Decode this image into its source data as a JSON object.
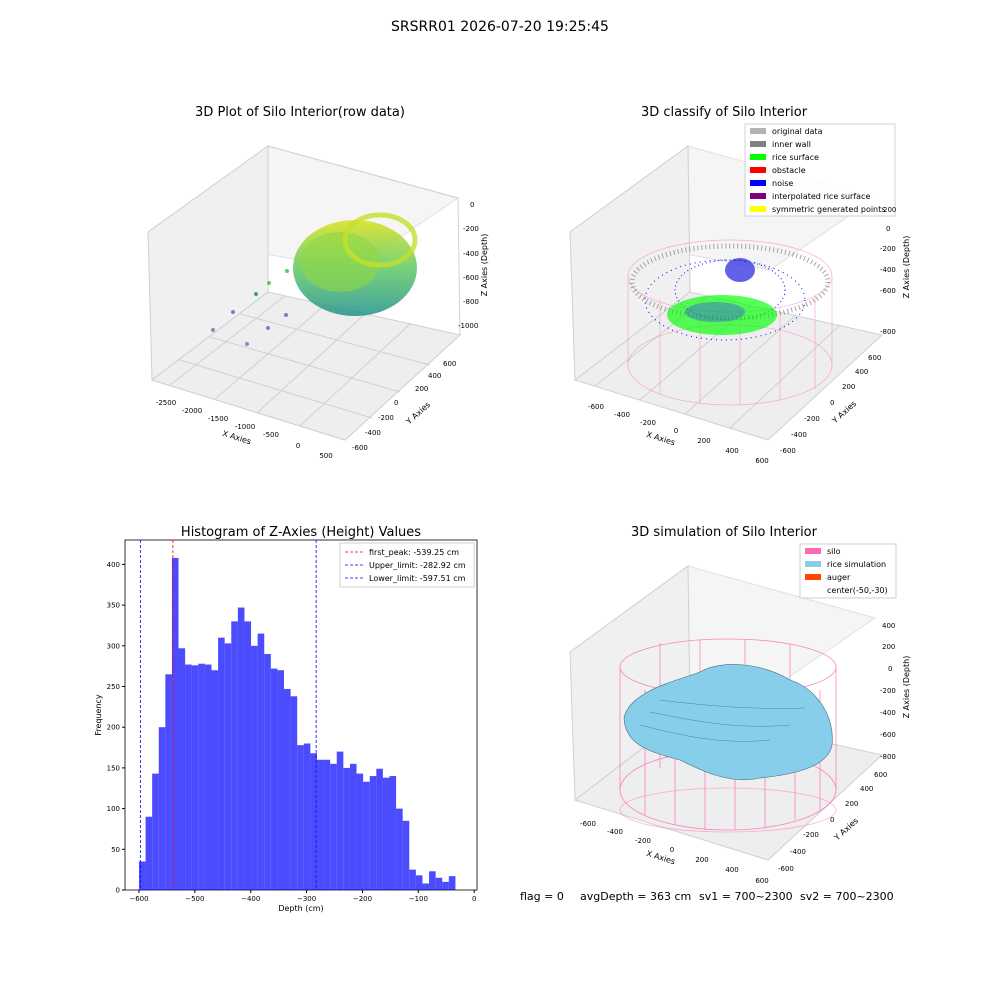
{
  "figure_title": "SRSRR01 2026-07-20 19:25:45",
  "status_line": {
    "flag": "flag = 0",
    "avg_depth": "avgDepth = 363 cm",
    "sv1": "sv1 = 700~2300",
    "sv2": "sv2 = 700~2300"
  },
  "chart_data": [
    {
      "type": "scatter",
      "projection": "3d",
      "title": "3D Plot of Silo Interior(row data)",
      "xlabel": "X Axies",
      "ylabel": "Y Axies",
      "zlabel": "Z Axies (Depth)",
      "x_ticks": [
        "-2500",
        "-2000",
        "-1500",
        "-1000",
        "-500",
        "0",
        "500"
      ],
      "y_ticks": [
        "-600",
        "-400",
        "-200",
        "0",
        "200",
        "400",
        "600"
      ],
      "z_ticks": [
        "0",
        "-200",
        "-400",
        "-600",
        "-800",
        "-1000"
      ],
      "colormap": "viridis"
    },
    {
      "type": "scatter",
      "projection": "3d",
      "title": "3D classify of Silo Interior",
      "xlabel": "X Axies",
      "ylabel": "Y Axies",
      "zlabel": "Z Axies (Depth)",
      "x_ticks": [
        "-600",
        "-400",
        "-200",
        "0",
        "200",
        "400",
        "600"
      ],
      "y_ticks": [
        "-600",
        "-400",
        "-200",
        "0",
        "200",
        "400",
        "600"
      ],
      "z_ticks": [
        "200",
        "0",
        "-200",
        "-400",
        "-600",
        "-800"
      ],
      "legend_placement": "top-right",
      "legend": [
        {
          "label": "original data",
          "color": "#b3b3b3"
        },
        {
          "label": "inner wall",
          "color": "#808080"
        },
        {
          "label": "rice surface",
          "color": "#00ff00"
        },
        {
          "label": "obstacle",
          "color": "#ff0000"
        },
        {
          "label": "noise",
          "color": "#0000ff"
        },
        {
          "label": "interpolated rice surface",
          "color": "#800080"
        },
        {
          "label": "symmetric generated points",
          "color": "#ffff00"
        }
      ]
    },
    {
      "type": "bar",
      "title": "Histogram of Z-Axies (Height) Values",
      "xlabel": "Depth (cm)",
      "ylabel": "Frequency",
      "xlim": [
        -625,
        5
      ],
      "ylim": [
        0,
        430
      ],
      "x_ticks": [
        -600,
        -500,
        -400,
        -300,
        -200,
        -100,
        0
      ],
      "y_ticks": [
        0,
        50,
        100,
        150,
        200,
        250,
        300,
        350,
        400
      ],
      "bin_start": -600,
      "bin_width": 11.8,
      "bar_color": "#0000ff",
      "values": [
        35,
        90,
        143,
        200,
        265,
        408,
        297,
        277,
        276,
        278,
        277,
        270,
        310,
        303,
        330,
        347,
        330,
        300,
        315,
        290,
        272,
        270,
        247,
        238,
        178,
        180,
        168,
        160,
        160,
        155,
        170,
        150,
        155,
        143,
        133,
        140,
        149,
        138,
        140,
        100,
        85,
        25,
        18,
        8,
        23,
        15,
        10,
        17
      ],
      "legend_placement": "top-right",
      "vlines": [
        {
          "label": "first_peak: -539.25 cm",
          "x": -539.25,
          "color": "#ff0000"
        },
        {
          "label": "Upper_limit: -282.92 cm",
          "x": -282.92,
          "color": "#0000ff"
        },
        {
          "label": "Lower_limit: -597.51 cm",
          "x": -597.51,
          "color": "#0000ff"
        }
      ]
    },
    {
      "type": "surface",
      "projection": "3d",
      "title": "3D simulation of Silo Interior",
      "xlabel": "X Axies",
      "ylabel": "Y Axies",
      "zlabel": "Z Axies (Depth)",
      "x_ticks": [
        "-600",
        "-400",
        "-200",
        "0",
        "200",
        "400",
        "600"
      ],
      "y_ticks": [
        "-600",
        "-400",
        "-200",
        "0",
        "200",
        "400",
        "600"
      ],
      "z_ticks": [
        "400",
        "200",
        "0",
        "-200",
        "-400",
        "-600",
        "-800"
      ],
      "legend_placement": "top-right",
      "legend": [
        {
          "label": "silo",
          "color": "#ff69b4"
        },
        {
          "label": "rice simulation",
          "color": "#87ceeb"
        },
        {
          "label": "auger",
          "color": "#ff4500"
        },
        {
          "label": "center(-50,-30)",
          "color": "#ffffff"
        }
      ]
    }
  ]
}
